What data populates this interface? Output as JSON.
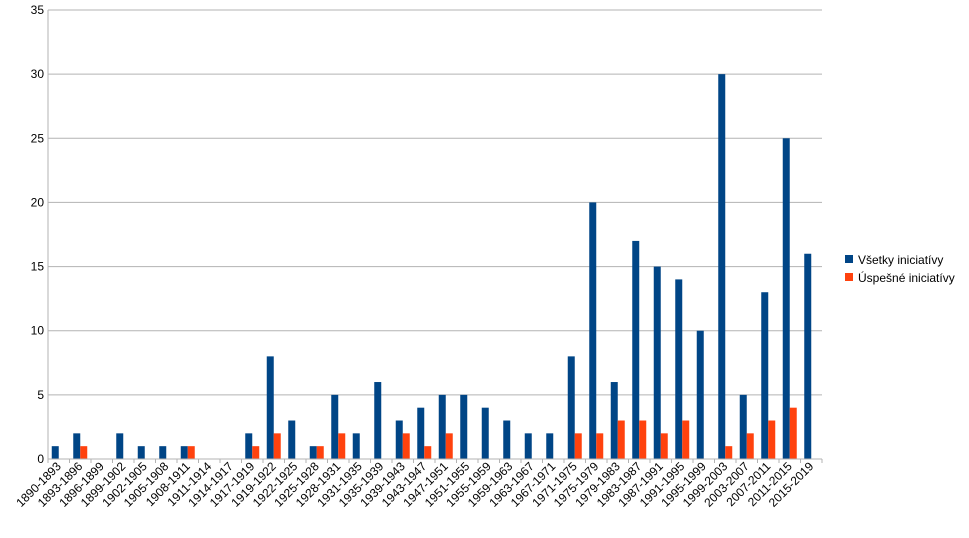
{
  "chart_data": {
    "type": "bar",
    "categories": [
      "1890-1893",
      "1893-1896",
      "1896-1899",
      "1899-1902",
      "1902-1905",
      "1905-1908",
      "1908-1911",
      "1911-1914",
      "1914-1917",
      "1917-1919",
      "1919-1922",
      "1922-1925",
      "1925-1928",
      "1928-1931",
      "1931-1935",
      "1935-1939",
      "1939-1943",
      "1943-1947",
      "1947-1951",
      "1951-1955",
      "1955-1959",
      "1959-1963",
      "1963-1967",
      "1967-1971",
      "1971-1975",
      "1975-1979",
      "1979-1983",
      "1983-1987",
      "1987-1991",
      "1991-1995",
      "1995-1999",
      "1999-2003",
      "2003-2007",
      "2007-2011",
      "2011-2015",
      "2015-2019"
    ],
    "series": [
      {
        "name": "Všetky iniciatívy",
        "color": "#004586",
        "values": [
          1,
          2,
          0,
          2,
          1,
          1,
          1,
          0,
          0,
          2,
          8,
          3,
          1,
          5,
          2,
          6,
          3,
          4,
          5,
          5,
          4,
          3,
          2,
          2,
          8,
          20,
          6,
          17,
          15,
          14,
          10,
          30,
          5,
          13,
          25,
          16
        ]
      },
      {
        "name": "Úspešné iniciatívy",
        "color": "#ff420e",
        "values": [
          0,
          1,
          0,
          0,
          0,
          0,
          1,
          0,
          0,
          1,
          2,
          0,
          1,
          2,
          0,
          0,
          2,
          1,
          2,
          0,
          0,
          0,
          0,
          0,
          2,
          2,
          3,
          3,
          2,
          3,
          0,
          1,
          2,
          3,
          4,
          0
        ]
      }
    ],
    "y_ticks": [
      "0",
      "5",
      "10",
      "15",
      "20",
      "25",
      "30",
      "35"
    ],
    "ylim": [
      0,
      35
    ],
    "grid": true,
    "legend_position": "right"
  }
}
